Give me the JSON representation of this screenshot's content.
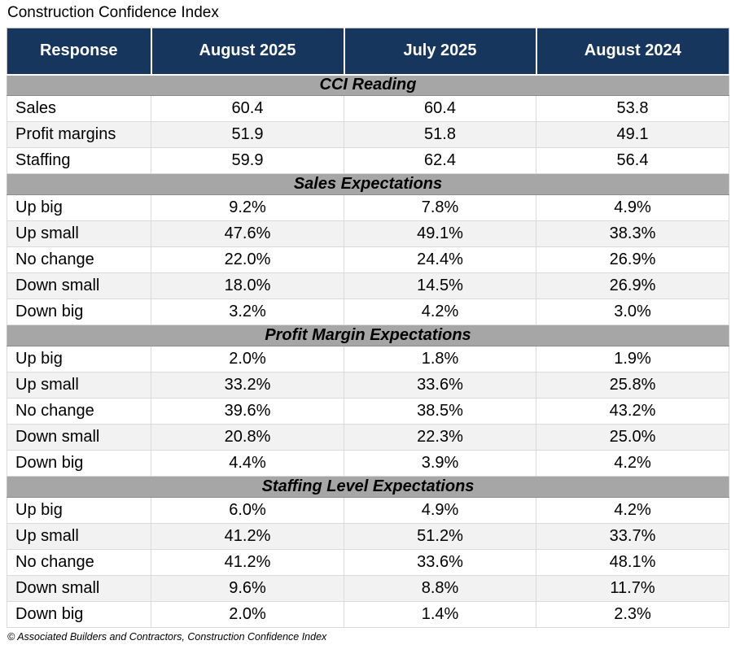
{
  "title": "Construction Confidence Index",
  "footer": "© Associated Builders and Contractors, Construction Confidence Index",
  "colors": {
    "header_bg": "#17365D",
    "header_fg": "#FFFFFF",
    "section_bg": "#A6A6A6",
    "alt_row_bg": "#F2F2F2",
    "grid": "#D9D9D9"
  },
  "chart_data": {
    "type": "table",
    "title": "Construction Confidence Index",
    "columns": [
      "Response",
      "August 2025",
      "July 2025",
      "August 2024"
    ],
    "sections": [
      {
        "header": "CCI Reading",
        "rows": [
          [
            "Sales",
            "60.4",
            "60.4",
            "53.8"
          ],
          [
            "Profit margins",
            "51.9",
            "51.8",
            "49.1"
          ],
          [
            "Staffing",
            "59.9",
            "62.4",
            "56.4"
          ]
        ]
      },
      {
        "header": "Sales Expectations",
        "rows": [
          [
            "Up big",
            "9.2%",
            "7.8%",
            "4.9%"
          ],
          [
            "Up small",
            "47.6%",
            "49.1%",
            "38.3%"
          ],
          [
            "No change",
            "22.0%",
            "24.4%",
            "26.9%"
          ],
          [
            "Down small",
            "18.0%",
            "14.5%",
            "26.9%"
          ],
          [
            "Down big",
            "3.2%",
            "4.2%",
            "3.0%"
          ]
        ]
      },
      {
        "header": "Profit Margin Expectations",
        "rows": [
          [
            "Up big",
            "2.0%",
            "1.8%",
            "1.9%"
          ],
          [
            "Up small",
            "33.2%",
            "33.6%",
            "25.8%"
          ],
          [
            "No change",
            "39.6%",
            "38.5%",
            "43.2%"
          ],
          [
            "Down small",
            "20.8%",
            "22.3%",
            "25.0%"
          ],
          [
            "Down big",
            "4.4%",
            "3.9%",
            "4.2%"
          ]
        ]
      },
      {
        "header": "Staffing Level Expectations",
        "rows": [
          [
            "Up big",
            "6.0%",
            "4.9%",
            "4.2%"
          ],
          [
            "Up small",
            "41.2%",
            "51.2%",
            "33.7%"
          ],
          [
            "No change",
            "41.2%",
            "33.6%",
            "48.1%"
          ],
          [
            "Down small",
            "9.6%",
            "8.8%",
            "11.7%"
          ],
          [
            "Down big",
            "2.0%",
            "1.4%",
            "2.3%"
          ]
        ]
      }
    ]
  }
}
